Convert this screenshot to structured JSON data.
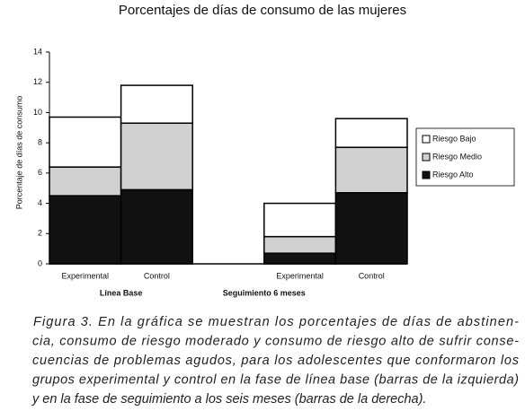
{
  "chart_data": {
    "type": "stacked_bar",
    "title": "Porcentajes de días de consumo de las mujeres",
    "y_label": "Porcentaje de días de consumo",
    "categories": [
      "Experimental",
      "Control",
      null,
      "Experimental",
      "Control"
    ],
    "groups": [
      "Línea Base",
      "Seguimiento 6 meses"
    ],
    "series": [
      {
        "name": "Riesgo Alto",
        "color": "#111111",
        "values": [
          4.5,
          4.9,
          null,
          0.7,
          4.7
        ]
      },
      {
        "name": "Riesgo Medio",
        "color": "#d0d0d0",
        "values": [
          1.9,
          4.4,
          null,
          1.1,
          3.0
        ]
      },
      {
        "name": "Riesgo Bajo",
        "color": "#ffffff",
        "values": [
          3.3,
          2.5,
          null,
          2.2,
          1.9
        ]
      }
    ],
    "ylim": [
      0,
      14
    ],
    "yticks": [
      0,
      2,
      4,
      6,
      8,
      10,
      12,
      14
    ],
    "grid": false,
    "legend": "right"
  },
  "caption": [
    "Figura 3. En la gráfica se muestran los porcentajes de días de abstinen-",
    "cia, consumo de riesgo moderado y consumo de riesgo alto de sufrir conse-",
    "cuencias de problemas agudos, para los adolescentes que conformaron los",
    "grupos experimental y control en la fase de línea base (barras de la izquierda)",
    "y en la fase de seguimiento a los seis meses (barras de la derecha)."
  ]
}
